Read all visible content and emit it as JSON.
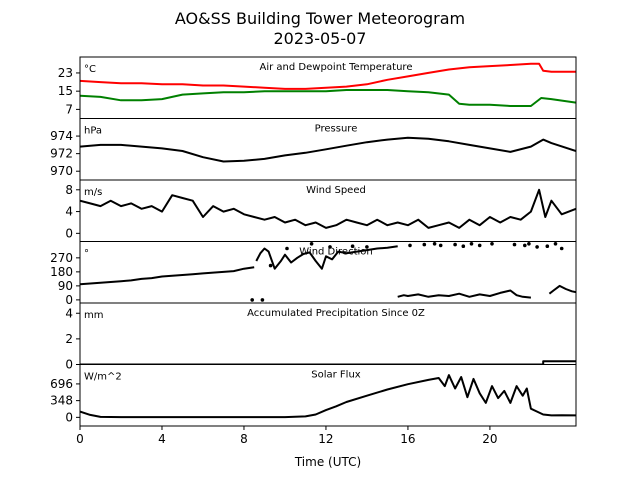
{
  "chart_data": {
    "type": "line",
    "title": "AO&SS Building Tower Meteorogram",
    "subtitle": "2023-05-07",
    "xlabel": "Time (UTC)",
    "xlim": [
      0,
      24.2
    ],
    "xticks": [
      0,
      4,
      8,
      12,
      16,
      20
    ],
    "xtick_labels": [
      "0",
      "4",
      "8",
      "12",
      "16",
      "20"
    ],
    "colors": {
      "air_temp": "#ff0000",
      "dewpoint": "#008000",
      "line": "#000000"
    },
    "panels": [
      {
        "id": "temp",
        "title": "Air and Dewpoint Temperature",
        "unit": "°C",
        "ylim": [
          3,
          30
        ],
        "yticks": [
          7,
          15,
          23
        ],
        "ytick_labels": [
          "7",
          "15",
          "23"
        ],
        "series": [
          {
            "key": "air_temp",
            "x": [
              0,
              1,
              2,
              3,
              4,
              5,
              6,
              7,
              8,
              9,
              10,
              11,
              12,
              13,
              14,
              15,
              16,
              17,
              18,
              19,
              20,
              21,
              22,
              22.4,
              22.6,
              23,
              24.2
            ],
            "y": [
              19.5,
              19,
              18.5,
              18.5,
              18,
              18,
              17.5,
              17.5,
              17,
              16.5,
              16,
              16,
              16.5,
              17,
              18,
              20,
              21.5,
              23,
              24.5,
              25.5,
              26,
              26.5,
              27,
              27,
              24,
              23.5,
              23.5
            ]
          },
          {
            "key": "dewpoint",
            "x": [
              0,
              1,
              2,
              3,
              4,
              4.5,
              5,
              6,
              7,
              8,
              9,
              10,
              11,
              12,
              13,
              14,
              15,
              16,
              17,
              18,
              18.5,
              19,
              20,
              21,
              22,
              22.5,
              23,
              24.2
            ],
            "y": [
              13,
              12.5,
              11,
              11,
              11.5,
              12.5,
              13.5,
              14,
              14.5,
              14.5,
              15,
              15,
              15,
              15,
              15.5,
              15.5,
              15.5,
              15,
              14.5,
              13.5,
              9.5,
              9,
              9,
              8.5,
              8.5,
              12,
              11.5,
              10
            ]
          }
        ]
      },
      {
        "id": "pressure",
        "title": "Pressure",
        "unit": "hPa",
        "ylim": [
          969,
          976
        ],
        "yticks": [
          970,
          972,
          974
        ],
        "ytick_labels": [
          "970",
          "972",
          "974"
        ],
        "series": [
          {
            "key": "line",
            "x": [
              0,
              1,
              2,
              3,
              4,
              5,
              6,
              7,
              8,
              9,
              10,
              11,
              12,
              13,
              14,
              15,
              16,
              17,
              18,
              19,
              20,
              21,
              22,
              22.6,
              23,
              24.2
            ],
            "y": [
              972.8,
              973,
              973,
              972.8,
              972.6,
              972.3,
              971.6,
              971.1,
              971.2,
              971.4,
              971.8,
              972.1,
              972.5,
              972.9,
              973.3,
              973.6,
              973.8,
              973.7,
              973.4,
              973,
              972.6,
              972.2,
              972.8,
              973.6,
              973.2,
              972.3
            ]
          }
        ]
      },
      {
        "id": "wind_speed",
        "title": "Wind Speed",
        "unit": "m/s",
        "ylim": [
          -1.5,
          9.8
        ],
        "yticks": [
          0,
          4,
          8
        ],
        "ytick_labels": [
          "0",
          "4",
          "8"
        ],
        "series": [
          {
            "key": "line",
            "x": [
              0,
              0.5,
              1,
              1.5,
              2,
              2.5,
              3,
              3.5,
              4,
              4.5,
              5,
              5.5,
              6,
              6.5,
              7,
              7.5,
              8,
              8.5,
              9,
              9.5,
              10,
              10.5,
              11,
              11.5,
              12,
              12.5,
              13,
              13.5,
              14,
              14.5,
              15,
              15.5,
              16,
              16.5,
              17,
              17.5,
              18,
              18.5,
              19,
              19.5,
              20,
              20.5,
              21,
              21.5,
              22,
              22.4,
              22.7,
              23,
              23.5,
              24.2
            ],
            "y": [
              6,
              5.5,
              5,
              6,
              5,
              5.5,
              4.5,
              5,
              4,
              7,
              6.5,
              6,
              3,
              5,
              4,
              4.5,
              3.5,
              3,
              2.5,
              3,
              2,
              2.5,
              1.5,
              2,
              1,
              1.5,
              2.5,
              2,
              1.5,
              2.5,
              1.5,
              2,
              1.5,
              2.5,
              1,
              1.5,
              2,
              1,
              2.5,
              1.5,
              3,
              2,
              3,
              2.5,
              4,
              8,
              3,
              6,
              3.5,
              4.5
            ]
          }
        ]
      },
      {
        "id": "wind_dir",
        "title": "Wind Direction",
        "unit": "°",
        "ylim": [
          -20,
          375
        ],
        "yticks": [
          0,
          90,
          180,
          270
        ],
        "ytick_labels": [
          "0",
          "90",
          "180",
          "270"
        ],
        "series": [
          {
            "key": "line",
            "x": [
              0,
              0.5,
              1,
              1.5,
              2,
              2.5,
              3,
              3.5,
              4,
              4.5,
              5,
              5.5,
              6,
              6.5,
              7,
              7.5,
              8,
              8.5
            ],
            "y": [
              100,
              105,
              110,
              115,
              120,
              125,
              135,
              140,
              150,
              155,
              160,
              165,
              170,
              175,
              180,
              185,
              200,
              210
            ]
          },
          {
            "key": "line",
            "x": [
              8.6,
              8.8,
              9,
              9.2,
              9.5,
              9.8,
              10,
              10.3,
              10.6,
              10.9,
              11.2,
              11.5,
              11.8,
              12,
              12.3,
              12.6,
              13,
              13.5,
              14,
              14.5,
              15,
              15.5
            ],
            "y": [
              250,
              300,
              330,
              310,
              200,
              250,
              290,
              240,
              270,
              295,
              305,
              250,
              200,
              280,
              260,
              310,
              300,
              310,
              320,
              330,
              335,
              345
            ]
          },
          {
            "key": "line",
            "x": [
              15.5,
              15.8,
              16,
              16.5,
              17,
              17.5,
              18,
              18.5,
              19,
              19.5,
              20,
              20.5,
              21,
              21.3,
              21.6,
              22
            ],
            "y": [
              20,
              30,
              25,
              35,
              20,
              30,
              25,
              40,
              20,
              35,
              25,
              45,
              60,
              30,
              20,
              15
            ]
          },
          {
            "key": "line",
            "x": [
              22.9,
              23.1,
              23.4,
              23.7,
              24,
              24.2
            ],
            "y": [
              40,
              60,
              90,
              70,
              55,
              50
            ]
          }
        ],
        "points": {
          "x": [
            8.4,
            8.9,
            9.3,
            10.1,
            11.3,
            12.2,
            13.3,
            14,
            16.1,
            16.8,
            17.3,
            17.6,
            18.3,
            18.7,
            19.1,
            19.5,
            20.1,
            21.2,
            21.7,
            21.9,
            22.3,
            22.8,
            23.2,
            23.5
          ],
          "y": [
            0,
            0,
            220,
            330,
            360,
            340,
            345,
            340,
            350,
            355,
            360,
            350,
            355,
            345,
            360,
            350,
            360,
            355,
            350,
            360,
            340,
            345,
            360,
            330
          ]
        }
      },
      {
        "id": "precip",
        "title": "Accumulated Precipitation Since 0Z",
        "unit": "mm",
        "ylim": [
          0,
          4.8
        ],
        "yticks": [
          0,
          2,
          4
        ],
        "ytick_labels": [
          "0",
          "2",
          "4"
        ],
        "series": [
          {
            "key": "line",
            "x": [
              0,
              22.6,
              22.6,
              24.2
            ],
            "y": [
              0,
              0,
              0.25,
              0.25
            ]
          }
        ]
      },
      {
        "id": "solar",
        "title": "Solar Flux",
        "unit": "W/m^2",
        "ylim": [
          -180,
          1100
        ],
        "yticks": [
          0,
          348,
          696
        ],
        "ytick_labels": [
          "0",
          "348",
          "696"
        ],
        "series": [
          {
            "key": "line",
            "x": [
              0,
              0.5,
              1,
              2,
              4,
              6,
              8,
              10,
              11,
              11.5,
              12,
              12.5,
              13,
              14,
              15,
              16,
              17,
              17.5,
              17.8,
              18,
              18.3,
              18.6,
              18.9,
              19.2,
              19.5,
              19.8,
              20.1,
              20.4,
              20.7,
              21,
              21.3,
              21.6,
              21.8,
              22,
              22.3,
              22.6,
              23,
              23.5,
              24.2
            ],
            "y": [
              120,
              50,
              10,
              5,
              5,
              5,
              5,
              5,
              20,
              60,
              150,
              230,
              320,
              450,
              580,
              690,
              780,
              820,
              650,
              880,
              600,
              840,
              420,
              800,
              500,
              300,
              650,
              400,
              550,
              300,
              650,
              450,
              600,
              180,
              120,
              60,
              40,
              45,
              40
            ]
          }
        ]
      }
    ]
  }
}
